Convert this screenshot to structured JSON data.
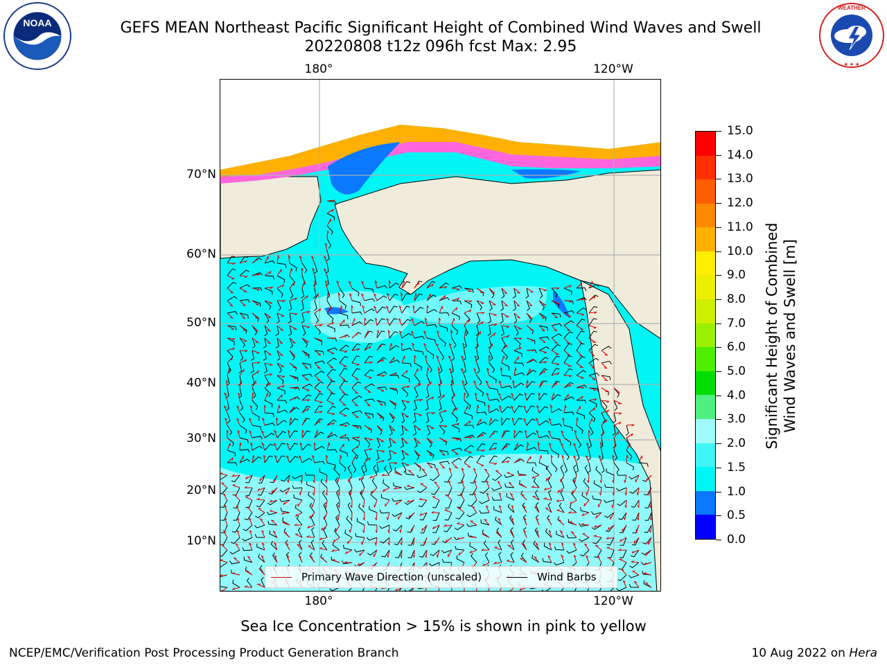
{
  "header": {
    "title_line1": "GEFS MEAN Northeast Pacific Significant Height of Combined Wind Waves and Swell",
    "title_line2": "20220808 t12z 096h fcst   Max: 2.95"
  },
  "logos": {
    "noaa": {
      "name": "noaa-logo",
      "text": "NOAA",
      "ring_text": "NATIONAL OCEANIC AND ATMOSPHERIC ADMINISTRATION · U.S. DEPARTMENT OF COMMERCE"
    },
    "nws": {
      "name": "nws-logo",
      "ring_text": "NATIONAL WEATHER SERVICE"
    }
  },
  "map": {
    "lon_labels_top": [
      "180°",
      "120°W"
    ],
    "lon_labels_bottom": [
      "180°",
      "120°W"
    ],
    "lat_labels": [
      "70°N",
      "60°N",
      "50°N",
      "40°N",
      "30°N",
      "20°N",
      "10°N"
    ],
    "colors": {
      "ocean_main": "#00f5f5",
      "ocean_light": "#a0fbfb",
      "land": "#efecdc",
      "ice_white": "#ffffff",
      "ice_orange": "#ffb000",
      "ice_pink": "#ff66dd",
      "shallow_blue": "#0a78ff",
      "wave_arrow": "#e00000",
      "wind_barb": "#000000",
      "gridline": "#b0b0b0"
    }
  },
  "legend": {
    "wave_label": "Primary Wave Direction (unscaled)",
    "wind_label": "Wind Barbs",
    "wave_color": "#e00000",
    "wind_color": "#000000"
  },
  "colorbar": {
    "title_line1": "Significant Height of Combined",
    "title_line2": "Wind Waves and Swell [m]",
    "ticks": [
      "0.0",
      "0.5",
      "1.0",
      "1.5",
      "2.0",
      "3.0",
      "4.0",
      "5.0",
      "6.0",
      "7.0",
      "8.0",
      "9.0",
      "10.0",
      "11.0",
      "12.0",
      "13.0",
      "14.0",
      "15.0"
    ],
    "segment_colors": [
      "#0000ff",
      "#0a78ff",
      "#00f5f5",
      "#40f5f5",
      "#a0fbfb",
      "#50f080",
      "#00dd00",
      "#50ee00",
      "#99f000",
      "#ccf000",
      "#eeee00",
      "#ffee00",
      "#ffb000",
      "#ff8800",
      "#ff5e00",
      "#ff3000",
      "#ff0000"
    ]
  },
  "caption": "Sea Ice Concentration > 15% is shown in pink to yellow",
  "footer": {
    "left": "NCEP/EMC/Verification Post Processing Product Generation Branch",
    "right_date": "10 Aug 2022 on",
    "right_host": "Hera"
  }
}
